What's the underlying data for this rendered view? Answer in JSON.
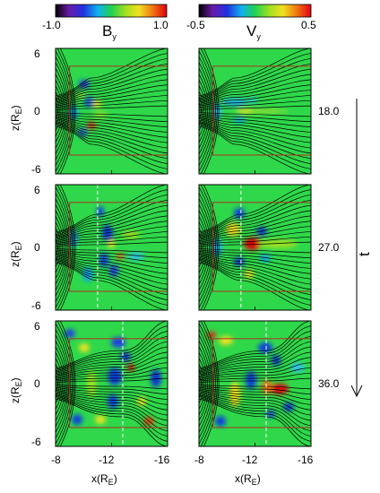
{
  "chart_data": {
    "type": "heatmap",
    "colorbars": [
      {
        "name": "B",
        "sub": "y",
        "ticks": [
          "-1.0",
          "1.0"
        ],
        "range": [
          -1.0,
          1.0
        ]
      },
      {
        "name": "V",
        "sub": "y",
        "ticks": [
          "-0.5",
          "0.5"
        ],
        "range": [
          -0.5,
          0.5
        ]
      }
    ],
    "x_ticks": [
      "-8",
      "-12",
      "-16"
    ],
    "x_range": [
      -8,
      -16
    ],
    "xlabel": {
      "main": "x(R",
      "sub": "E",
      "tail": ")"
    },
    "y_ticks": [
      "6",
      "0",
      "-6"
    ],
    "y_range": [
      -6,
      6
    ],
    "ylabel": {
      "main": "z(R",
      "sub": "E",
      "tail": ")"
    },
    "time_label": "t",
    "times": [
      "18.0",
      "27.0",
      "36.0"
    ],
    "rows": [
      {
        "t": "18.0",
        "front_x": null
      },
      {
        "t": "27.0",
        "front_x": -11.0
      },
      {
        "t": "36.0",
        "front_x": -12.8
      }
    ],
    "box": {
      "x": [
        -9.0,
        -16.0
      ],
      "z": [
        -4.2,
        4.3
      ]
    },
    "colors": {
      "background": "#2ed84a",
      "box": "#b03020",
      "front": "#ffffff",
      "field_lines": "#000000"
    }
  }
}
